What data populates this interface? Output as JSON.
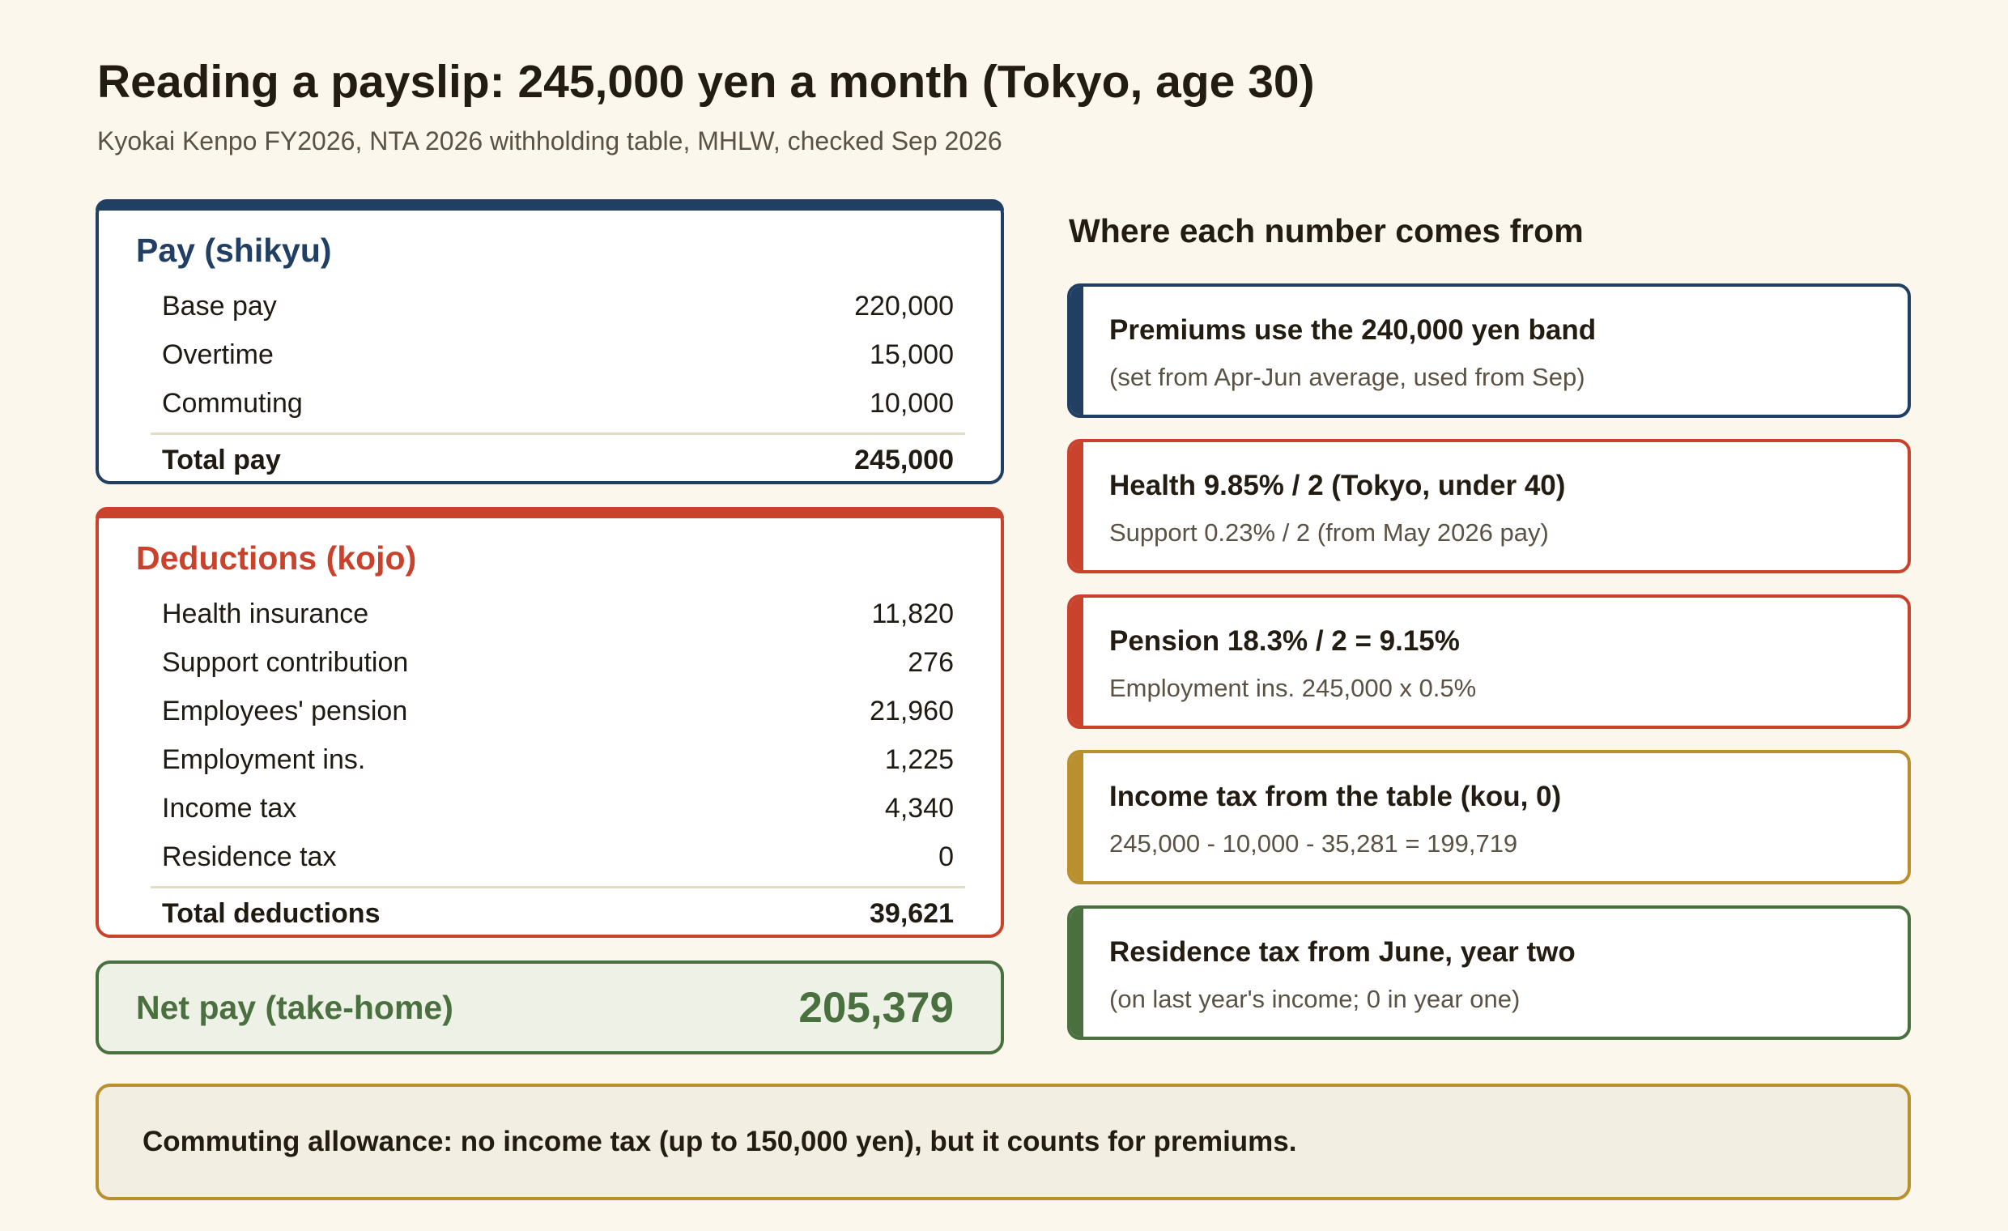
{
  "header": {
    "title": "Reading a payslip: 245,000 yen a month (Tokyo, age 30)",
    "subtitle": "Kyokai Kenpo FY2026, NTA 2026 withholding table, MHLW, checked Sep 2026"
  },
  "pay": {
    "heading": "Pay (shikyu)",
    "items": [
      {
        "label": "Base pay",
        "value": "220,000"
      },
      {
        "label": "Overtime",
        "value": "15,000"
      },
      {
        "label": "Commuting",
        "value": "10,000"
      }
    ],
    "total_label": "Total pay",
    "total_value": "245,000"
  },
  "deductions": {
    "heading": "Deductions (kojo)",
    "items": [
      {
        "label": "Health insurance",
        "value": "11,820"
      },
      {
        "label": "Support contribution",
        "value": "276"
      },
      {
        "label": "Employees' pension",
        "value": "21,960"
      },
      {
        "label": "Employment ins.",
        "value": "1,225"
      },
      {
        "label": "Income tax",
        "value": "4,340"
      },
      {
        "label": "Residence tax",
        "value": "0"
      }
    ],
    "total_label": "Total deductions",
    "total_value": "39,621"
  },
  "net": {
    "label": "Net pay (take-home)",
    "value": "205,379"
  },
  "explain": {
    "heading": "Where each number comes from",
    "notes": [
      {
        "title": "Premiums use the 240,000 yen band",
        "sub": "(set from Apr-Jun average, used from Sep)",
        "color": "#213f63"
      },
      {
        "title": "Health 9.85% / 2 (Tokyo, under 40)",
        "sub": "Support 0.23% / 2 (from May 2026 pay)",
        "color": "#c8422c"
      },
      {
        "title": "Pension 18.3% / 2 = 9.15%",
        "sub": "Employment ins. 245,000 x 0.5%",
        "color": "#c8422c"
      },
      {
        "title": "Income tax from the table (kou, 0)",
        "sub": "245,000 - 10,000 - 35,281 = 199,719",
        "color": "#b8902e"
      },
      {
        "title": "Residence tax from June, year two",
        "sub": "(on last year's income; 0 in year one)",
        "color": "#4a7040"
      }
    ]
  },
  "footer": {
    "text": "Commuting allowance: no income tax (up to 150,000 yen), but it counts for premiums."
  }
}
